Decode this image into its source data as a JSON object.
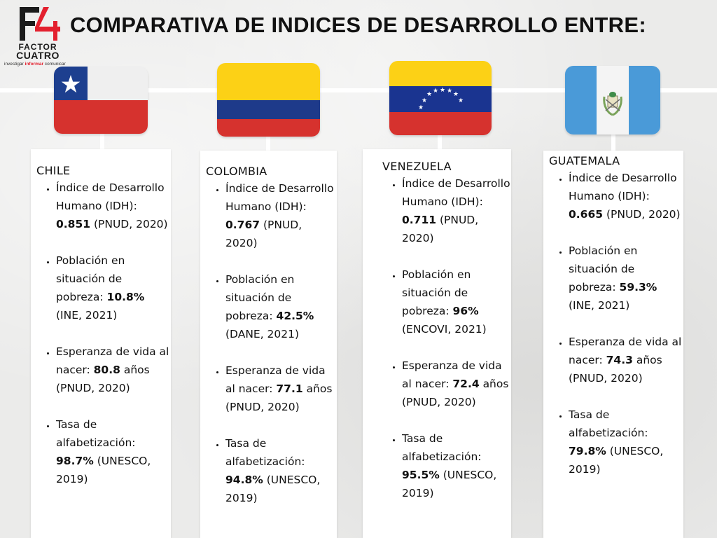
{
  "header": {
    "logo": {
      "mark": "F4",
      "word1": "FACTOR",
      "word2": "CUATRO",
      "tagline": {
        "part1": "investigar",
        "highlight": "informar",
        "part2": "comunicar"
      },
      "colors": {
        "red": "#e3202e",
        "dark": "#1b1b1b"
      }
    },
    "title": "COMPARATIVA DE INDICES DE DESARROLLO ENTRE:"
  },
  "countries": [
    {
      "name": "CHILE",
      "flag_icon": "chile-flag-icon",
      "flag_colors": {
        "blue": "#1d3f8f",
        "white": "#efefef",
        "red": "#d6322e"
      },
      "idh": {
        "label": "Índice de Desarrollo Humano (IDH):",
        "value": "0.851",
        "source": "(PNUD, 2020)"
      },
      "poverty": {
        "label": "Población en situación de pobreza:",
        "value": "10.8%",
        "source": "(INE, 2021)"
      },
      "life": {
        "label": "Esperanza de vida al nacer:",
        "value": "80.8",
        "unit": "años",
        "source": "(PNUD, 2020)"
      },
      "literacy": {
        "label": "Tasa de alfabetización:",
        "value": "98.7%",
        "source": "(UNESCO, 2019)"
      }
    },
    {
      "name": "COLOMBIA",
      "flag_icon": "colombia-flag-icon",
      "flag_colors": {
        "yellow": "#fcd116",
        "blue": "#1e3a8a",
        "red": "#d6322e"
      },
      "idh": {
        "label": "Índice de Desarrollo Humano (IDH):",
        "value": "0.767",
        "source": "(PNUD, 2020)"
      },
      "poverty": {
        "label": "Población en situación de pobreza:",
        "value": "42.5%",
        "source": "(DANE, 2021)"
      },
      "life": {
        "label": "Esperanza de vida al nacer:",
        "value": "77.1",
        "unit": "años",
        "source": "(PNUD, 2020)"
      },
      "literacy": {
        "label": "Tasa de alfabetización:",
        "value": "94.8%",
        "source": "(UNESCO, 2019)"
      }
    },
    {
      "name": "VENEZUELA",
      "flag_icon": "venezuela-flag-icon",
      "flag_colors": {
        "yellow": "#fcd116",
        "blue": "#1a3490",
        "red": "#d6322e"
      },
      "idh": {
        "label": "Índice de Desarrollo Humano (IDH):",
        "value": "0.711",
        "source": "(PNUD, 2020)"
      },
      "poverty": {
        "label": "Población en situación de pobreza:",
        "value": "96%",
        "source": "(ENCOVI, 2021)"
      },
      "life": {
        "label": "Esperanza de vida al nacer:",
        "value": "72.4",
        "unit": "años",
        "source": "(PNUD, 2020)"
      },
      "literacy": {
        "label": "Tasa de alfabetización:",
        "value": "95.5%",
        "source": "(UNESCO, 2019)"
      }
    },
    {
      "name": "GUATEMALA",
      "flag_icon": "guatemala-flag-icon",
      "flag_colors": {
        "sky": "#4a9ad8",
        "white": "#f4f4f4",
        "emblem": "#7aa35a"
      },
      "idh": {
        "label": "Índice de Desarrollo Humano (IDH):",
        "value": "0.665",
        "source": "(PNUD, 2020)"
      },
      "poverty": {
        "label": "Población en situación de pobreza:",
        "value": "59.3%",
        "source": "(INE, 2021)"
      },
      "life": {
        "label": "Esperanza de vida al nacer:",
        "value": "74.3",
        "unit": "años",
        "source": "(PNUD, 2020)"
      },
      "literacy": {
        "label": "Tasa de alfabetización:",
        "value": "79.8%",
        "source": "(UNESCO, 2019)"
      }
    }
  ]
}
